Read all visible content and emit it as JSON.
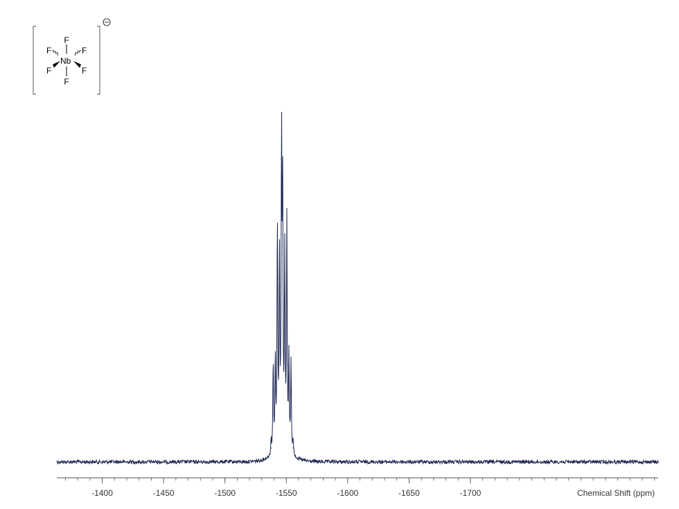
{
  "molecule": {
    "center_atom": "Nb",
    "ligand_atom": "F",
    "ligand_count": 6,
    "charge_symbol": "⊖"
  },
  "chart_data": {
    "type": "line",
    "title": "",
    "xlabel": "Chemical Shift (ppm)",
    "ylabel": "",
    "x_reversed": false,
    "xlim": [
      -1363,
      -1853
    ],
    "ylim": [
      0,
      1.0
    ],
    "grid": false,
    "x_ticks": [
      {
        "value": -1400,
        "label": "-1400"
      },
      {
        "value": -1450,
        "label": "-1450"
      },
      {
        "value": -1500,
        "label": "-1500"
      },
      {
        "value": -1550,
        "label": "-1550"
      },
      {
        "value": -1600,
        "label": "-1600"
      },
      {
        "value": -1650,
        "label": "-1650"
      },
      {
        "value": -1700,
        "label": "-1700"
      }
    ],
    "series": [
      {
        "color": "#1a2550",
        "baseline": 0.0,
        "peaks": [
          {
            "x": -1537.6,
            "y": 0.045
          },
          {
            "x": -1539.3,
            "y": 0.3
          },
          {
            "x": -1541.0,
            "y": 0.3
          },
          {
            "x": -1542.7,
            "y": 0.75
          },
          {
            "x": -1544.4,
            "y": 0.64
          },
          {
            "x": -1546.1,
            "y": 1.0
          },
          {
            "x": -1547.0,
            "y": 0.8
          },
          {
            "x": -1548.7,
            "y": 0.64
          },
          {
            "x": -1550.4,
            "y": 0.75
          },
          {
            "x": -1552.1,
            "y": 0.3
          },
          {
            "x": -1553.8,
            "y": 0.3
          },
          {
            "x": -1555.5,
            "y": 0.045
          }
        ]
      }
    ]
  }
}
